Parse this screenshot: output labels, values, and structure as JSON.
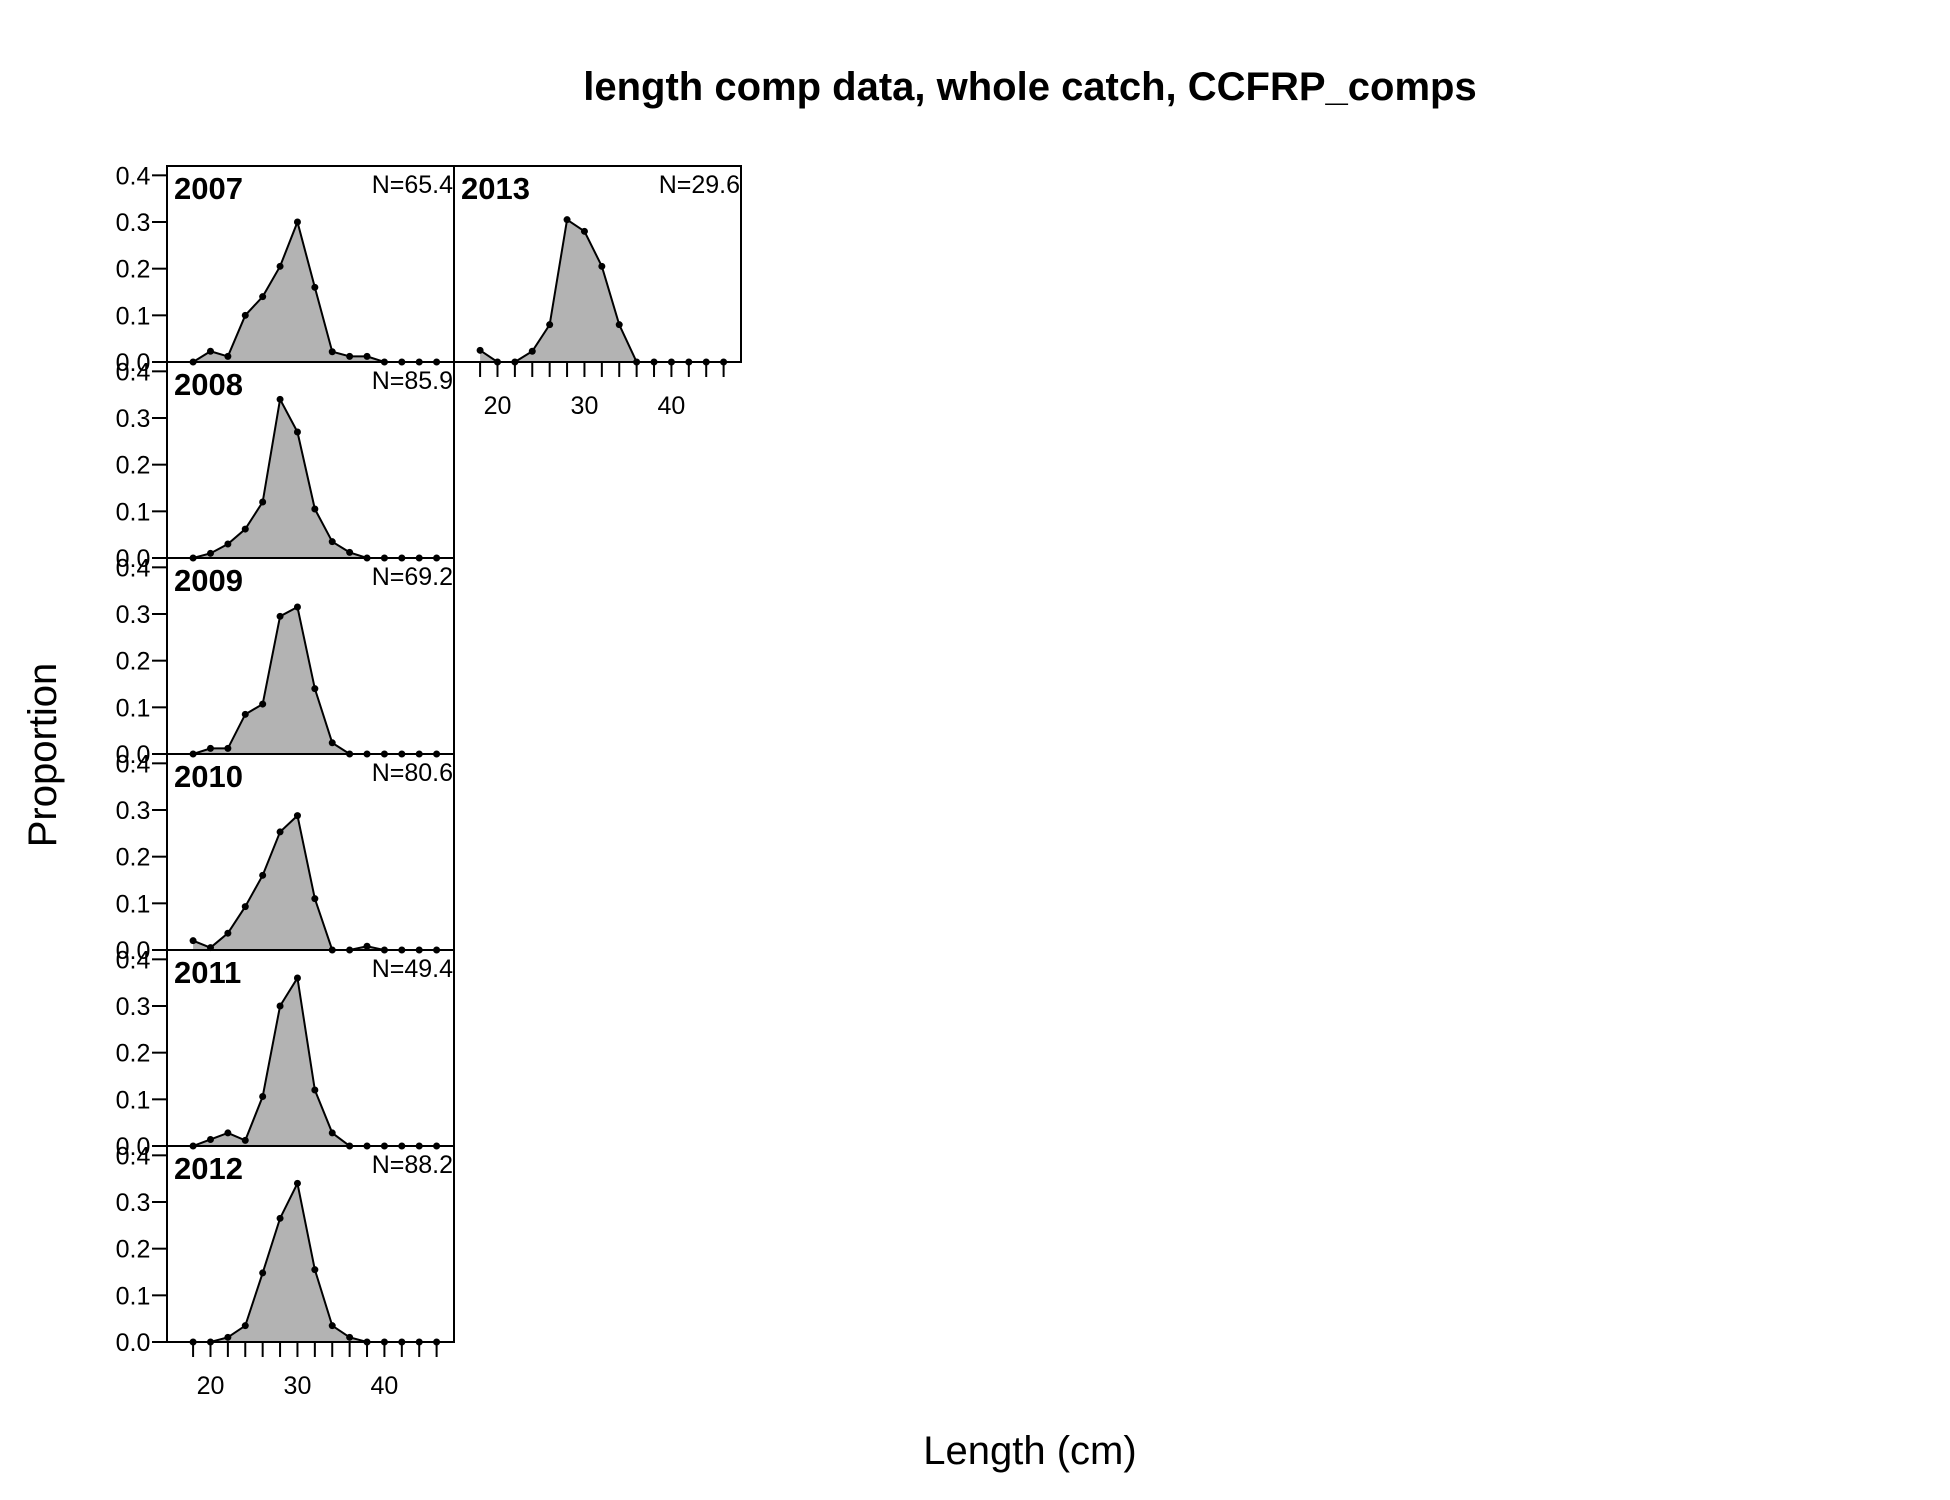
{
  "chart_data": {
    "type": "area",
    "title": "length comp data, whole catch, CCFRP_comps",
    "xlabel": "Length (cm)",
    "ylabel": "Proportion",
    "xlim": [
      15,
      48
    ],
    "ylim": [
      0,
      0.42
    ],
    "x_ticks": [
      20,
      30,
      40
    ],
    "y_ticks": [
      0.0,
      0.1,
      0.2,
      0.3,
      0.4
    ],
    "y_tick_labels": [
      "0.0",
      "0.1",
      "0.2",
      "0.3",
      "0.4"
    ],
    "fill_color": "#b3b3b3",
    "line_color": "#000000",
    "x": [
      18,
      20,
      22,
      24,
      26,
      28,
      30,
      32,
      34,
      36,
      38,
      40,
      42,
      44,
      46
    ],
    "panels": [
      {
        "year": "2007",
        "n_label": "N=65.4",
        "values": [
          0.0,
          0.023,
          0.012,
          0.1,
          0.14,
          0.205,
          0.3,
          0.16,
          0.022,
          0.012,
          0.012,
          0.0,
          0.0,
          0.0,
          0.0
        ]
      },
      {
        "year": "2008",
        "n_label": "N=85.9",
        "values": [
          0.0,
          0.01,
          0.03,
          0.062,
          0.12,
          0.34,
          0.27,
          0.105,
          0.035,
          0.012,
          0.0,
          0.0,
          0.0,
          0.0,
          0.0
        ]
      },
      {
        "year": "2009",
        "n_label": "N=69.2",
        "values": [
          0.0,
          0.012,
          0.012,
          0.085,
          0.107,
          0.295,
          0.315,
          0.14,
          0.024,
          0.0,
          0.0,
          0.0,
          0.0,
          0.0,
          0.0
        ]
      },
      {
        "year": "2010",
        "n_label": "N=80.6",
        "values": [
          0.02,
          0.005,
          0.036,
          0.093,
          0.16,
          0.253,
          0.288,
          0.11,
          0.0,
          0.0,
          0.008,
          0.0,
          0.0,
          0.0,
          0.0
        ]
      },
      {
        "year": "2011",
        "n_label": "N=49.4",
        "values": [
          0.0,
          0.014,
          0.028,
          0.012,
          0.106,
          0.3,
          0.36,
          0.12,
          0.028,
          0.0,
          0.0,
          0.0,
          0.0,
          0.0,
          0.0
        ]
      },
      {
        "year": "2012",
        "n_label": "N=88.2",
        "values": [
          0.0,
          0.0,
          0.01,
          0.035,
          0.148,
          0.265,
          0.34,
          0.155,
          0.035,
          0.01,
          0.0,
          0.0,
          0.0,
          0.0,
          0.0
        ]
      },
      {
        "year": "2013",
        "n_label": "N=29.6",
        "values": [
          0.025,
          0.0,
          0.0,
          0.023,
          0.08,
          0.305,
          0.28,
          0.205,
          0.08,
          0.0,
          0.0,
          0.0,
          0.0,
          0.0,
          0.0
        ]
      }
    ]
  }
}
